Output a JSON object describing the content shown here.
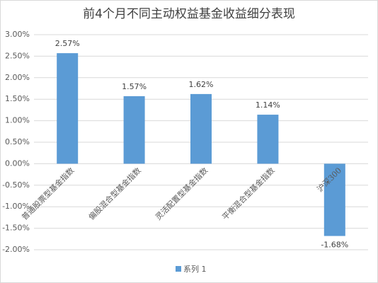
{
  "chart_data": {
    "type": "bar",
    "title": "前4个月不同主动权益基金收益细分表现",
    "categories": [
      "普通股票型基金指数",
      "偏股混合型基金指数",
      "灵活配置型基金指数",
      "平衡混合型基金指数",
      "沪深300"
    ],
    "series": [
      {
        "name": "系列 1",
        "color": "#5b9bd5",
        "values": [
          2.57,
          1.57,
          1.62,
          1.14,
          -1.68
        ],
        "value_labels": [
          "2.57%",
          "1.57%",
          "1.62%",
          "1.14%",
          "-1.68%"
        ]
      }
    ],
    "ylim": [
      -2,
      3
    ],
    "yticks": [
      {
        "value": -2,
        "label": "-2.00%"
      },
      {
        "value": -1.5,
        "label": "-1.50%"
      },
      {
        "value": -1,
        "label": "-1.00%"
      },
      {
        "value": -0.5,
        "label": "-0.50%"
      },
      {
        "value": 0,
        "label": "0.00%"
      },
      {
        "value": 0.5,
        "label": "0.50%"
      },
      {
        "value": 1,
        "label": "1.00%"
      },
      {
        "value": 1.5,
        "label": "1.50%"
      },
      {
        "value": 2,
        "label": "2.00%"
      },
      {
        "value": 2.5,
        "label": "2.50%"
      },
      {
        "value": 3,
        "label": "3.00%"
      }
    ],
    "grid": true,
    "legend": "bottom"
  }
}
